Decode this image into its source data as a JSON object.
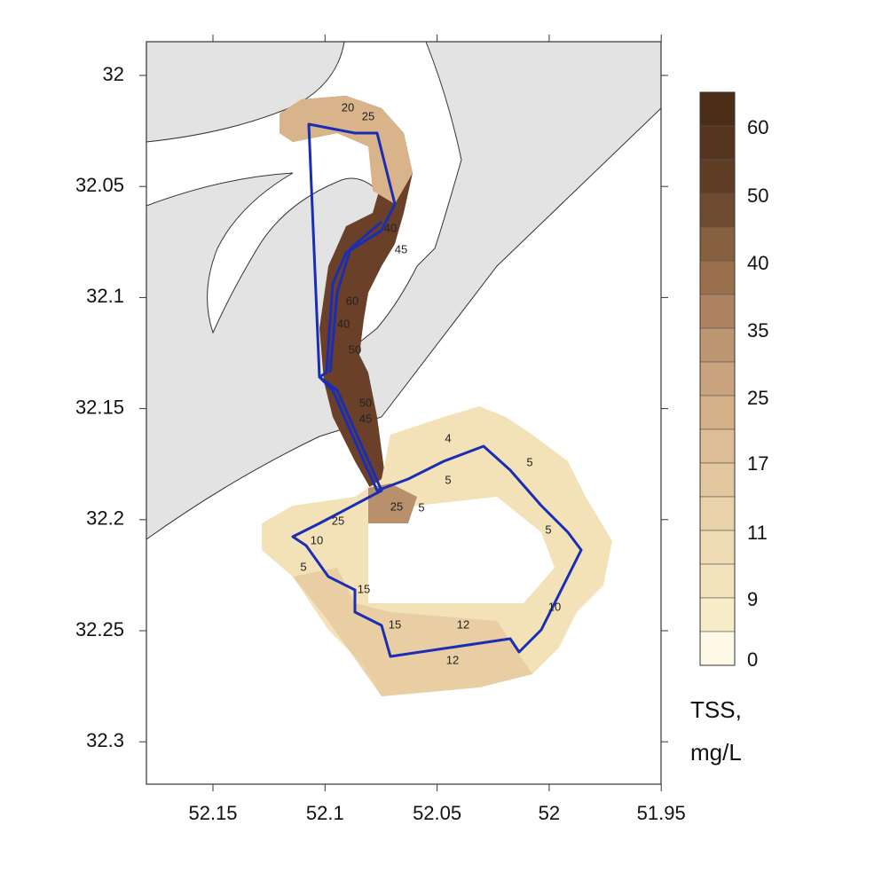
{
  "map": {
    "y_axis": {
      "ticks": [
        "32",
        "32.05",
        "32.1",
        "32.15",
        "32.2",
        "32.25",
        "32.3"
      ]
    },
    "x_axis": {
      "ticks": [
        "52.15",
        "52.1",
        "52.05",
        "52",
        "51.95"
      ]
    },
    "colorbar": {
      "labels": [
        "60",
        "50",
        "40",
        "35",
        "25",
        "17",
        "11",
        "9",
        "0"
      ],
      "title_lines": [
        "TSS,",
        "mg/L"
      ],
      "band_colors": [
        "#4b2d17",
        "#563520",
        "#5f3c24",
        "#6e4a31",
        "#87603f",
        "#9a6f4c",
        "#ad8361",
        "#bd9672",
        "#caa47e",
        "#d4b189",
        "#ddbd95",
        "#e3c79f",
        "#e9d2aa",
        "#eedab3",
        "#f3e3bd",
        "#f7ecc8",
        "#fdf9e6"
      ]
    },
    "contour_labels": [
      "20",
      "25",
      "40",
      "45",
      "60",
      "40",
      "50",
      "50",
      "45",
      "25",
      "25",
      "10",
      "5",
      "15",
      "15",
      "12",
      "12",
      "10",
      "5",
      "5",
      "5",
      "4",
      "5"
    ]
  }
}
